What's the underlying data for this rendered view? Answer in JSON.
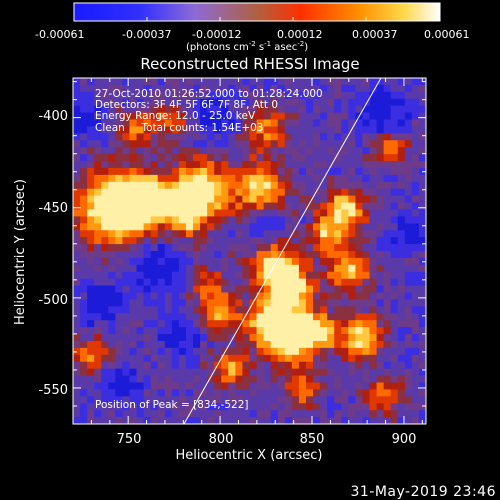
{
  "colorbar": {
    "tick_labels": [
      "-0.00061",
      "-0.00037",
      "-0.00012",
      "0.00012",
      "0.00037",
      "0.00061"
    ],
    "unit_label": "(photons cm",
    "unit_sup1": "-2",
    "unit_s": " s",
    "unit_sup2": "-1",
    "unit_asec": " asec",
    "unit_sup3": "-2",
    "unit_close": ")",
    "range": [
      -0.00061,
      0.00061
    ]
  },
  "plot": {
    "title": "Reconstructed RHESSI Image",
    "info_lines": [
      "27-Oct-2010 01:26:52.000 to 01:28:24.000",
      "Detectors: 3F 4F 5F 6F 7F 8F, Att 0",
      "Energy Range: 12.0 - 25.0 keV",
      "Clean     Total counts: 1.54E+03"
    ],
    "peak_label": "Position of Peak = [834,-522]",
    "xlabel": "Heliocentric X (arcsec)",
    "ylabel": "Heliocentric Y (arcsec)",
    "x_ticks": [
      "750",
      "800",
      "850",
      "900"
    ],
    "y_ticks": [
      "-400",
      "-450",
      "-500",
      "-550"
    ],
    "x_range": [
      720,
      912
    ],
    "y_range": [
      -570,
      -378
    ],
    "limb_color": "#ffffff"
  },
  "footer": {
    "timestamp": "31-May-2019 23:46"
  }
}
